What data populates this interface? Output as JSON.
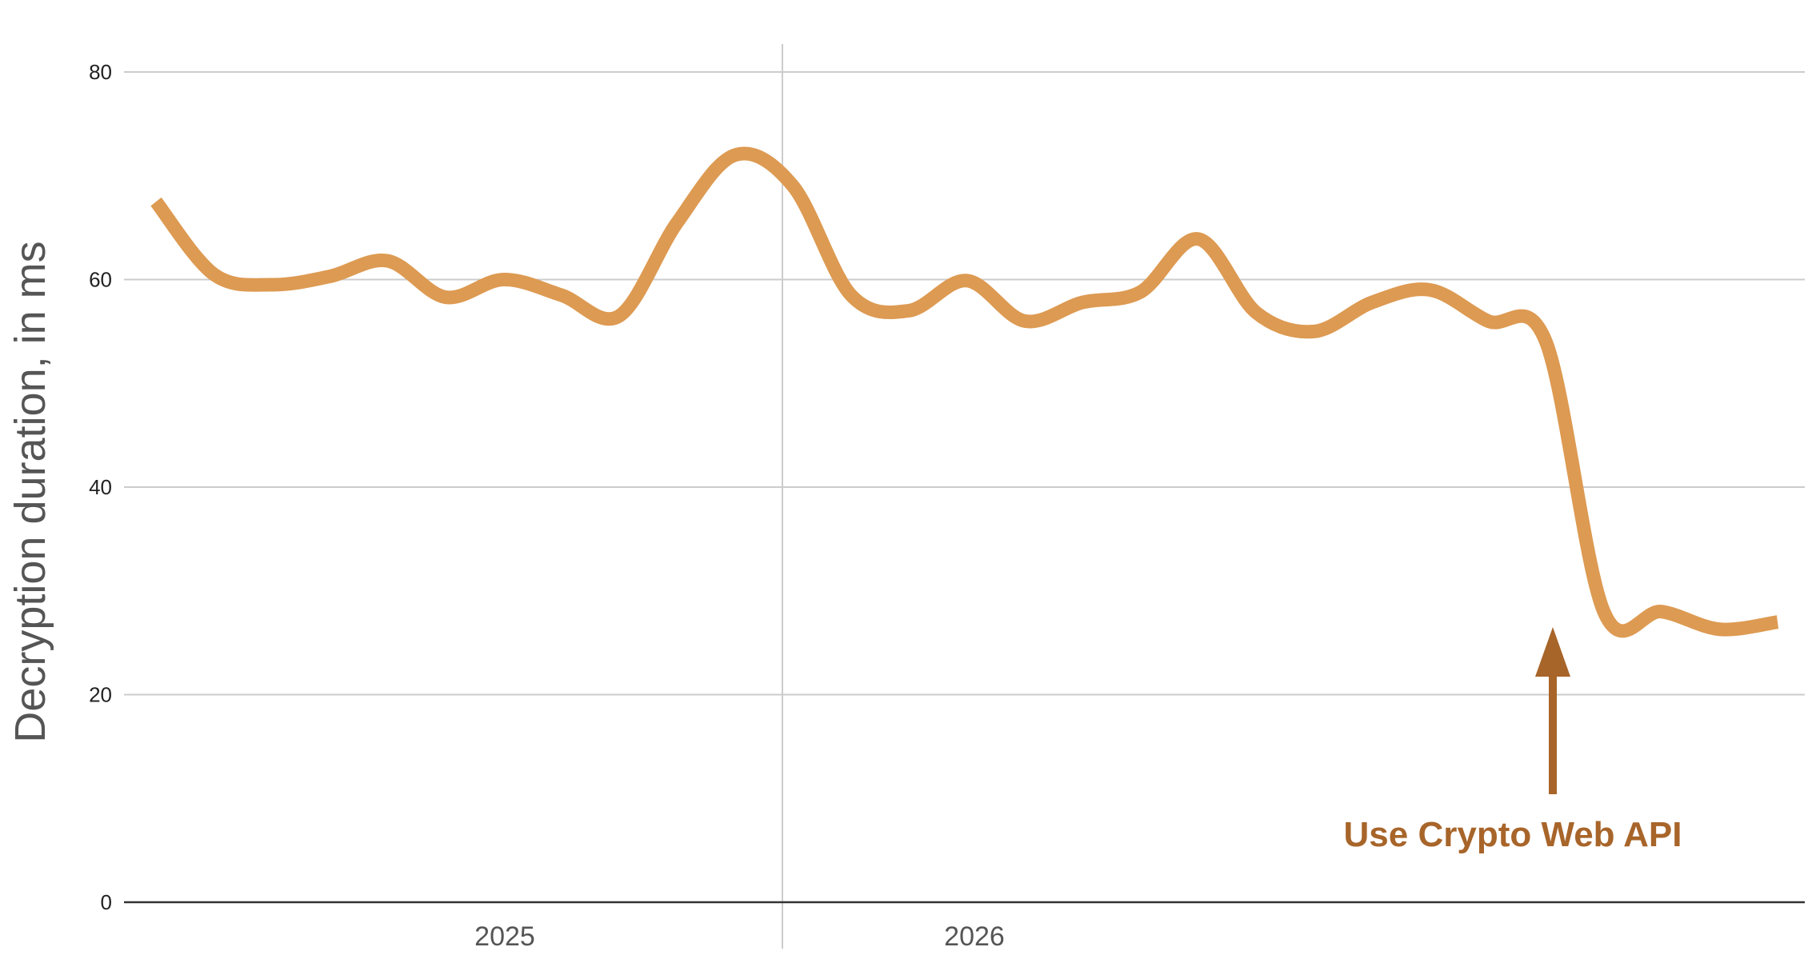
{
  "chart_data": {
    "type": "line",
    "title": "",
    "xlabel": "",
    "ylabel": "Decryption duration, in ms",
    "ylim": [
      0,
      80
    ],
    "yticks": [
      0,
      20,
      40,
      60,
      80
    ],
    "x_ticks": [
      "2025",
      "2026"
    ],
    "grid": true,
    "legend": "none",
    "series": [
      {
        "values": [
          67.5,
          60.5,
          59.5,
          60.3,
          61.8,
          58.3,
          60.0,
          58.5,
          56.5,
          65.5,
          72.0,
          69.0,
          58.5,
          57.0,
          59.9,
          56.0,
          57.8,
          58.8,
          63.9,
          56.8,
          55.0,
          57.8,
          59.0,
          56.0,
          54.0,
          28.0,
          28.0,
          26.3,
          27.0
        ]
      }
    ],
    "line_color": "#dd9a52",
    "annotation": {
      "text": "Use Crypto Web API",
      "color": "#a8652a",
      "target_index": 25
    }
  }
}
